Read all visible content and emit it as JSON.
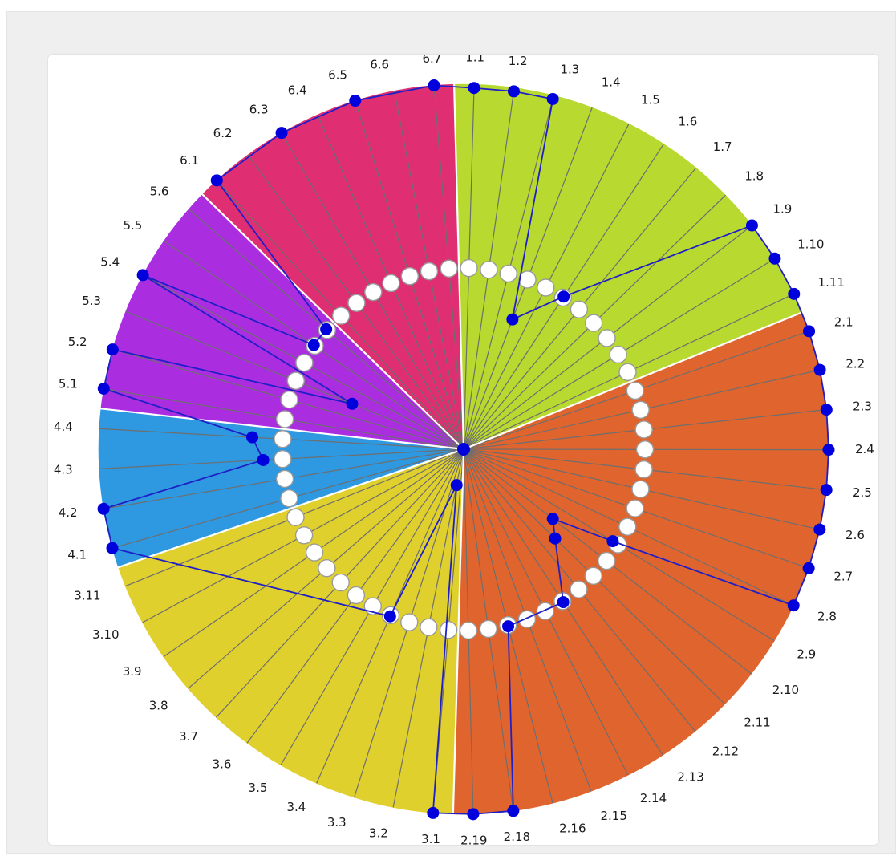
{
  "chart_data": {
    "type": "radial",
    "title": "",
    "ring_scale": [
      0,
      1
    ],
    "colors": {
      "1": "#b8d930",
      "2": "#e0642e",
      "3": "#e0d02e",
      "4": "#2e98e0",
      "5": "#aa2ee0",
      "6": "#e02e72",
      "point": "#0000dd",
      "line": "#1f1fc7"
    },
    "groups": [
      {
        "id": "1",
        "labels": [
          "1.1",
          "1.2",
          "1.3",
          "1.4",
          "1.5",
          "1.6",
          "1.7",
          "1.8",
          "1.9",
          "1.10",
          "1.11"
        ]
      },
      {
        "id": "2",
        "labels": [
          "2.1",
          "2.2",
          "2.3",
          "2.4",
          "2.5",
          "2.6",
          "2.7",
          "2.8",
          "2.9",
          "2.10",
          "2.11",
          "2.12",
          "2.13",
          "2.14",
          "2.15",
          "2.16",
          "2.18",
          "2.19"
        ]
      },
      {
        "id": "3",
        "labels": [
          "3.1",
          "3.2",
          "3.3",
          "3.4",
          "3.5",
          "3.6",
          "3.7",
          "3.8",
          "3.9",
          "3.10",
          "3.11"
        ]
      },
      {
        "id": "4",
        "labels": [
          "4.1",
          "4.2",
          "4.3",
          "4.4"
        ]
      },
      {
        "id": "5",
        "labels": [
          "5.1",
          "5.2",
          "5.3",
          "5.4",
          "5.5",
          "5.6"
        ]
      },
      {
        "id": "6",
        "labels": [
          "6.1",
          "6.2",
          "6.3",
          "6.4",
          "6.5",
          "6.6",
          "6.7"
        ]
      }
    ],
    "points": [
      {
        "label": "1.1",
        "value": 0.99
      },
      {
        "label": "1.2",
        "value": 0.99
      },
      {
        "label": "1.3",
        "value": 0.99
      },
      {
        "label": "1.4",
        "value": 0.38
      },
      {
        "label": "1.6",
        "value": 0.5
      },
      {
        "label": "1.9",
        "value": 1.0
      },
      {
        "label": "1.10",
        "value": 1.0
      },
      {
        "label": "1.11",
        "value": 1.0
      },
      {
        "label": "2.1",
        "value": 1.0
      },
      {
        "label": "2.2",
        "value": 1.0
      },
      {
        "label": "2.3",
        "value": 1.0
      },
      {
        "label": "2.4",
        "value": 1.0
      },
      {
        "label": "2.5",
        "value": 1.0
      },
      {
        "label": "2.6",
        "value": 1.0
      },
      {
        "label": "2.7",
        "value": 1.0
      },
      {
        "label": "2.8",
        "value": 1.0
      },
      {
        "label": "2.9",
        "value": 0.48
      },
      {
        "label": "2.10",
        "value": 0.31
      },
      {
        "label": "2.11",
        "value": 0.35
      },
      {
        "label": "2.13",
        "value": 0.5
      },
      {
        "label": "2.16",
        "value": 0.5
      },
      {
        "label": "2.18",
        "value": 1.0
      },
      {
        "label": "2.19",
        "value": 1.0
      },
      {
        "label": "3.1",
        "value": 1.0
      },
      {
        "label": "3.2",
        "value": 0.1
      },
      {
        "label": "3.4",
        "value": 0.5
      },
      {
        "label": "4.1",
        "value": 1.0
      },
      {
        "label": "4.2",
        "value": 1.0
      },
      {
        "label": "4.3",
        "value": 0.55
      },
      {
        "label": "4.4",
        "value": 0.58
      },
      {
        "label": "5.1",
        "value": 1.0
      },
      {
        "label": "5.2",
        "value": 1.0
      },
      {
        "label": "5.3",
        "value": 0.33
      },
      {
        "label": "5.4",
        "value": 1.0
      },
      {
        "label": "5.5",
        "value": 0.5
      },
      {
        "label": "5.6",
        "value": 0.5
      },
      {
        "label": "6.1",
        "value": 1.0
      },
      {
        "label": "6.3",
        "value": 1.0
      },
      {
        "label": "6.5",
        "value": 1.0
      },
      {
        "label": "6.7",
        "value": 1.0
      }
    ]
  }
}
